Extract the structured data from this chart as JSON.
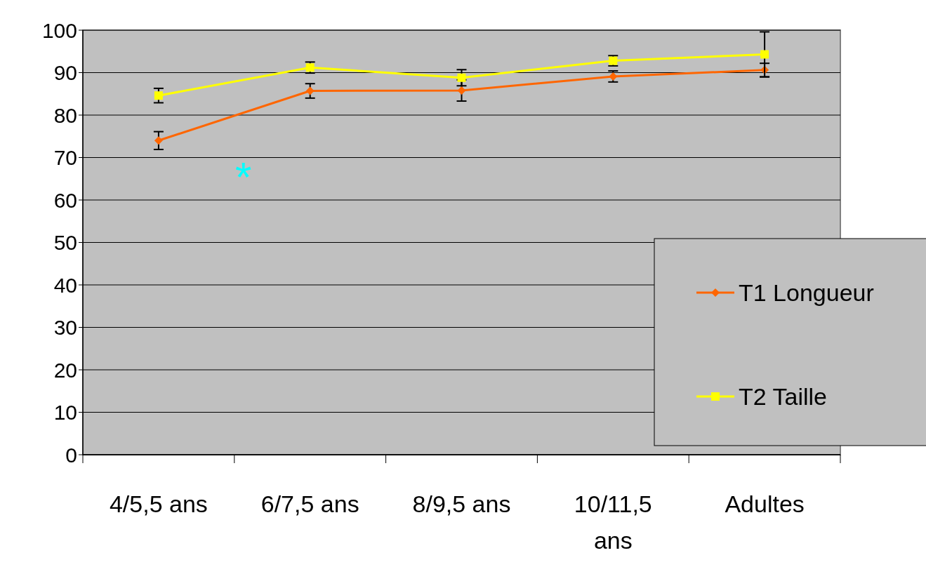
{
  "chart_data": {
    "type": "line",
    "categories": [
      "4/5,5 ans",
      "6/7,5 ans",
      "8/9,5 ans",
      "10/11,5 ans",
      "Adultes"
    ],
    "series": [
      {
        "name": "T1 Longueur",
        "color": "#ff6600",
        "marker": "diamond",
        "values": [
          74,
          85.7,
          85.8,
          89.1,
          90.6
        ],
        "errors": [
          2.1,
          1.7,
          2.5,
          1.3,
          1.6
        ]
      },
      {
        "name": "T2 Taille",
        "color": "#ffff00",
        "marker": "square",
        "values": [
          84.6,
          91.2,
          88.8,
          92.8,
          94.3
        ],
        "errors": [
          1.7,
          1.3,
          1.9,
          1.2,
          5.3
        ]
      }
    ],
    "ylim": [
      0,
      100
    ],
    "yticks": [
      0,
      10,
      20,
      30,
      40,
      50,
      60,
      70,
      80,
      90,
      100
    ],
    "grid": "y",
    "legend": "right",
    "annotations": [
      "*"
    ]
  }
}
